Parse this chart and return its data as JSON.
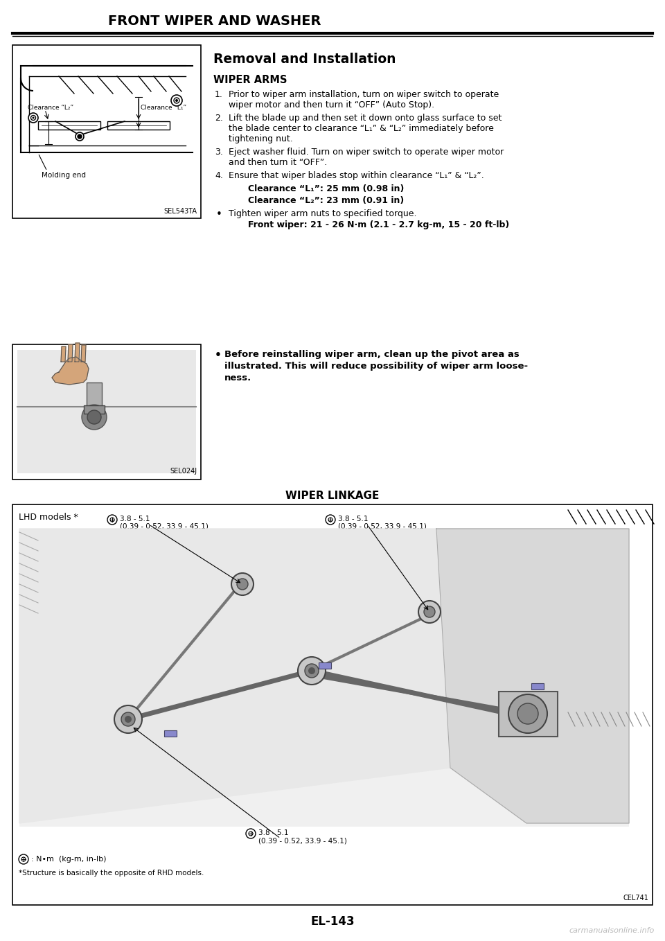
{
  "page_title": "FRONT WIPER AND WASHER",
  "page_number": "EL-143",
  "watermark": "carmanualsonline.info",
  "section_title": "Removal and Installation",
  "subsection1": "WIPER ARMS",
  "item1_line1": "Prior to wiper arm installation, turn on wiper switch to operate",
  "item1_line2": "wiper motor and then turn it “OFF” (Auto Stop).",
  "item2_line1": "Lift the blade up and then set it down onto glass surface to set",
  "item2_line2": "the blade center to clearance “L₁” & “L₂” immediately before",
  "item2_line3": "tightening nut.",
  "item3_line1": "Eject washer fluid. Turn on wiper switch to operate wiper motor",
  "item3_line2": "and then turn it “OFF”.",
  "item4_line1": "Ensure that wiper blades stop within clearance “L₁” & “L₂”.",
  "clearance1_bold": "Clearance “L₁”: 25 mm (0.98 in)",
  "clearance2_bold": "Clearance “L₂”: 23 mm (0.91 in)",
  "bullet_item": "Tighten wiper arm nuts to specified torque.",
  "torque_bold": "Front wiper: 21 - 26 N·m (2.1 - 2.7 kg-m, 15 - 20 ft-lb)",
  "bullet2_line1": "Before reinstalling wiper arm, clean up the pivot area as",
  "bullet2_line2": "illustrated. This will reduce possibility of wiper arm loose-",
  "bullet2_line3": "ness.",
  "subsection2": "WIPER LINKAGE",
  "lhd_label": "LHD models *",
  "torque_val_line1": "3.8 - 5.1",
  "torque_val_line2": "(0.39 - 0.52, 33.9 - 45.1)",
  "nm_label": ": N•m  (kg-m, in-lb)",
  "structure_note": "*Structure is basically the opposite of RHD models.",
  "img1_code": "SEL543TA",
  "img2_code": "SEL024J",
  "img3_code": "CEL741",
  "bg_color": "#ffffff",
  "text_color": "#000000",
  "label_clearance_L1": "Clearance “L₁”",
  "label_clearance_L2": "Clearance “L₂”",
  "label_molding_end": "Molding end"
}
